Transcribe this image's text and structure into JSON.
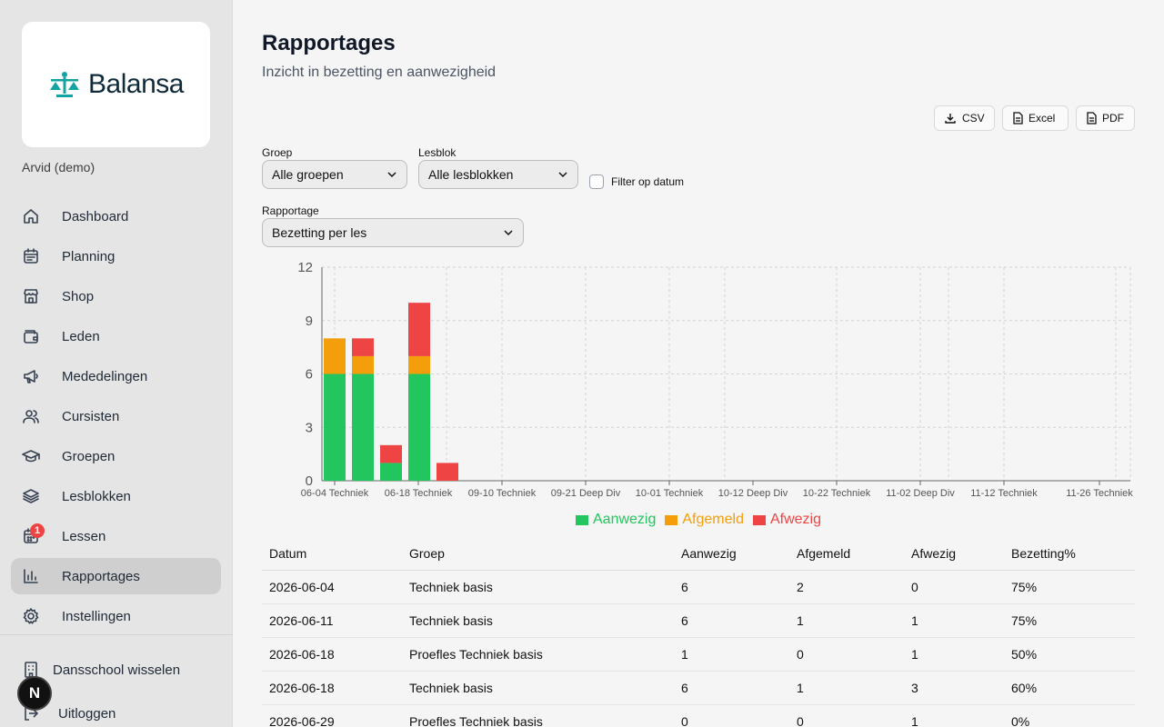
{
  "brand": {
    "name": "Balansa",
    "accent": "#14a3a3"
  },
  "user": {
    "name": "Arvid (demo)"
  },
  "nav": [
    {
      "label": "Dashboard",
      "icon": "home-icon"
    },
    {
      "label": "Planning",
      "icon": "calendar-icon"
    },
    {
      "label": "Shop",
      "icon": "store-icon"
    },
    {
      "label": "Leden",
      "icon": "wallet-icon"
    },
    {
      "label": "Mededelingen",
      "icon": "megaphone-icon"
    },
    {
      "label": "Cursisten",
      "icon": "users-icon"
    },
    {
      "label": "Groepen",
      "icon": "graduation-cap-icon"
    },
    {
      "label": "Lesblokken",
      "icon": "layers-icon"
    },
    {
      "label": "Lessen",
      "icon": "calendar-days-icon",
      "badge": "1"
    },
    {
      "label": "Rapportages",
      "icon": "bar-chart-icon",
      "active": true
    },
    {
      "label": "Instellingen",
      "icon": "gear-icon"
    }
  ],
  "bottom": {
    "switch_label": "Dansschool wisselen",
    "logout_label": "Uitloggen",
    "avatar_letter": "N"
  },
  "page": {
    "title": "Rapportages",
    "subtitle": "Inzicht in bezetting en aanwezigheid"
  },
  "exports": {
    "csv": "CSV",
    "excel": "Excel",
    "pdf": "PDF"
  },
  "filters": {
    "group_label": "Groep",
    "group_value": "Alle groepen",
    "block_label": "Lesblok",
    "block_value": "Alle lesblokken",
    "date_filter_label": "Filter op datum",
    "date_filter_checked": false,
    "report_label": "Rapportage",
    "report_value": "Bezetting per les"
  },
  "chart_data": {
    "type": "bar",
    "stacked": true,
    "categories": [
      "06-04 Techniek",
      "06-11",
      "06-18 Techniek",
      "06-18",
      "06-29",
      "09-10 Techniek",
      "09-21 Deep Div",
      "10-01 Techniek",
      "10-12 Deep Div",
      "10-22 Techniek",
      "11-02 Deep Div",
      "11-12 Techniek",
      "11-26 Techniek"
    ],
    "tick_labels_shown": [
      "06-04 Techniek",
      "06-18 Techniek",
      "09-10 Techniek",
      "09-21 Deep Div",
      "10-01 Techniek",
      "10-12 Deep Div",
      "10-22 Techniek",
      "11-02 Deep Div",
      "11-12 Techniek",
      "11-26 Techniek"
    ],
    "series": [
      {
        "name": "Aanwezig",
        "color": "#22c55e",
        "values": [
          6,
          6,
          1,
          6,
          0,
          0,
          0,
          0,
          0,
          0,
          0,
          0,
          0
        ]
      },
      {
        "name": "Afgemeld",
        "color": "#f59e0b",
        "values": [
          2,
          1,
          0,
          1,
          0,
          0,
          0,
          0,
          0,
          0,
          0,
          0,
          0
        ]
      },
      {
        "name": "Afwezig",
        "color": "#ef4444",
        "values": [
          0,
          1,
          1,
          3,
          1,
          0,
          0,
          0,
          0,
          0,
          0,
          0,
          0
        ]
      }
    ],
    "yticks": [
      0,
      3,
      6,
      9,
      12
    ],
    "ylim": [
      0,
      12
    ],
    "grid": true,
    "legend": "bottom-center"
  },
  "table": {
    "columns": [
      "Datum",
      "Groep",
      "Aanwezig",
      "Afgemeld",
      "Afwezig",
      "Bezetting%"
    ],
    "rows": [
      [
        "2026-06-04",
        "Techniek basis",
        "6",
        "2",
        "0",
        "75%"
      ],
      [
        "2026-06-11",
        "Techniek basis",
        "6",
        "1",
        "1",
        "75%"
      ],
      [
        "2026-06-18",
        "Proefles Techniek basis",
        "1",
        "0",
        "1",
        "50%"
      ],
      [
        "2026-06-18",
        "Techniek basis",
        "6",
        "1",
        "3",
        "60%"
      ],
      [
        "2026-06-29",
        "Proefles Techniek basis",
        "0",
        "0",
        "1",
        "0%"
      ]
    ]
  }
}
